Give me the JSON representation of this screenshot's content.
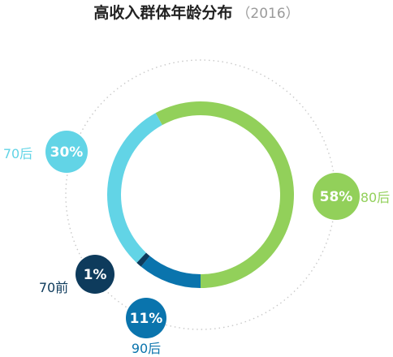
{
  "chart_data": {
    "type": "pie",
    "title": "高收入群体年龄分布",
    "subtitle": "（2016）",
    "categories": [
      "80后",
      "90后",
      "70前",
      "70后"
    ],
    "values": [
      58,
      11,
      1,
      30
    ],
    "labels": [
      "58%",
      "11%",
      "1%",
      "30%"
    ],
    "colors": [
      "#92d05a",
      "#0a74ad",
      "#0e3b5c",
      "#62d4e6"
    ],
    "label_colors": [
      "#92d05a",
      "#0a74ad",
      "#0e3b5c",
      "#62d4e6"
    ]
  }
}
